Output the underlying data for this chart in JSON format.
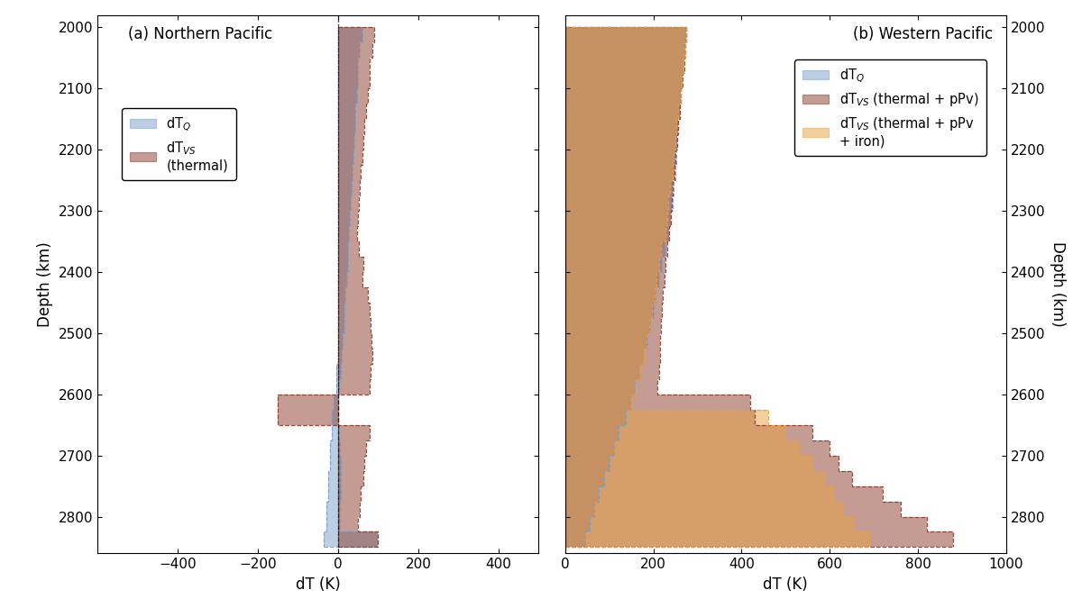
{
  "title_a": "(a) Northern Pacific",
  "title_b": "(b) Western Pacific",
  "xlabel": "dT (K)",
  "ylabel_left": "Depth (km)",
  "ylabel_right": "Depth (km)",
  "color_blue": "#7B9EC9",
  "color_brown": "#8B3A28",
  "color_orange": "#E8A040",
  "alpha": 0.5,
  "depths": [
    2000,
    2025,
    2050,
    2075,
    2100,
    2125,
    2150,
    2175,
    2200,
    2225,
    2250,
    2275,
    2300,
    2325,
    2350,
    2375,
    2400,
    2425,
    2450,
    2475,
    2500,
    2525,
    2550,
    2575,
    2600,
    2625,
    2650,
    2675,
    2700,
    2725,
    2750,
    2775,
    2800,
    2825,
    2850
  ],
  "panel_a": {
    "dTQ_lo": [
      0,
      0,
      0,
      0,
      0,
      0,
      0,
      0,
      0,
      0,
      0,
      0,
      0,
      0,
      0,
      0,
      0,
      0,
      0,
      0,
      0,
      0,
      -5,
      -5,
      -10,
      -15,
      -15,
      -20,
      -20,
      -25,
      -25,
      -28,
      -28,
      -35,
      0
    ],
    "dTQ_hi": [
      60,
      55,
      50,
      50,
      47,
      43,
      42,
      40,
      38,
      36,
      34,
      32,
      30,
      28,
      26,
      24,
      22,
      19,
      17,
      15,
      12,
      10,
      6,
      3,
      0,
      0,
      3,
      4,
      8,
      7,
      6,
      4,
      4,
      100,
      0
    ],
    "dTVS_lo": [
      0,
      0,
      0,
      0,
      0,
      0,
      0,
      0,
      0,
      0,
      0,
      0,
      0,
      0,
      0,
      0,
      0,
      0,
      0,
      0,
      0,
      0,
      0,
      0,
      -150,
      -150,
      0,
      0,
      0,
      0,
      0,
      0,
      0,
      0,
      0
    ],
    "dTVS_hi": [
      90,
      85,
      80,
      78,
      74,
      70,
      66,
      63,
      60,
      57,
      54,
      51,
      49,
      48,
      53,
      63,
      60,
      75,
      78,
      82,
      84,
      85,
      82,
      78,
      0,
      0,
      78,
      70,
      65,
      64,
      56,
      54,
      50,
      100,
      0
    ]
  },
  "panel_b": {
    "dTQ_lo": [
      0,
      0,
      0,
      0,
      0,
      0,
      0,
      0,
      0,
      0,
      0,
      0,
      0,
      0,
      0,
      0,
      0,
      0,
      0,
      0,
      0,
      0,
      0,
      0,
      0,
      0,
      0,
      0,
      0,
      0,
      0,
      0,
      0,
      0,
      0
    ],
    "dTQ_hi": [
      275,
      270,
      268,
      265,
      263,
      260,
      257,
      255,
      252,
      250,
      246,
      243,
      240,
      236,
      228,
      220,
      214,
      206,
      200,
      193,
      186,
      178,
      168,
      158,
      148,
      138,
      122,
      112,
      100,
      88,
      77,
      66,
      56,
      46,
      0
    ],
    "dTVS_pPv_lo": [
      0,
      0,
      0,
      0,
      0,
      0,
      0,
      0,
      0,
      0,
      0,
      0,
      0,
      0,
      0,
      0,
      0,
      0,
      0,
      0,
      0,
      0,
      0,
      0,
      0,
      0,
      0,
      0,
      0,
      0,
      0,
      0,
      0,
      0,
      0
    ],
    "dTVS_pPv_hi": [
      275,
      272,
      270,
      266,
      263,
      260,
      257,
      255,
      250,
      248,
      244,
      242,
      240,
      236,
      232,
      228,
      225,
      222,
      220,
      218,
      215,
      215,
      213,
      210,
      420,
      430,
      560,
      600,
      620,
      650,
      720,
      760,
      820,
      880,
      0
    ],
    "dTVS_iron_lo": [
      0,
      0,
      0,
      0,
      0,
      0,
      0,
      0,
      0,
      0,
      0,
      0,
      0,
      0,
      0,
      0,
      0,
      0,
      0,
      0,
      0,
      0,
      0,
      0,
      0,
      0,
      0,
      0,
      0,
      0,
      0,
      0,
      0,
      0,
      0
    ],
    "dTVS_iron_hi": [
      275,
      272,
      268,
      265,
      262,
      257,
      253,
      250,
      246,
      243,
      238,
      234,
      232,
      228,
      218,
      213,
      207,
      202,
      196,
      191,
      185,
      178,
      170,
      160,
      152,
      460,
      500,
      530,
      560,
      590,
      610,
      630,
      655,
      690,
      0
    ]
  }
}
